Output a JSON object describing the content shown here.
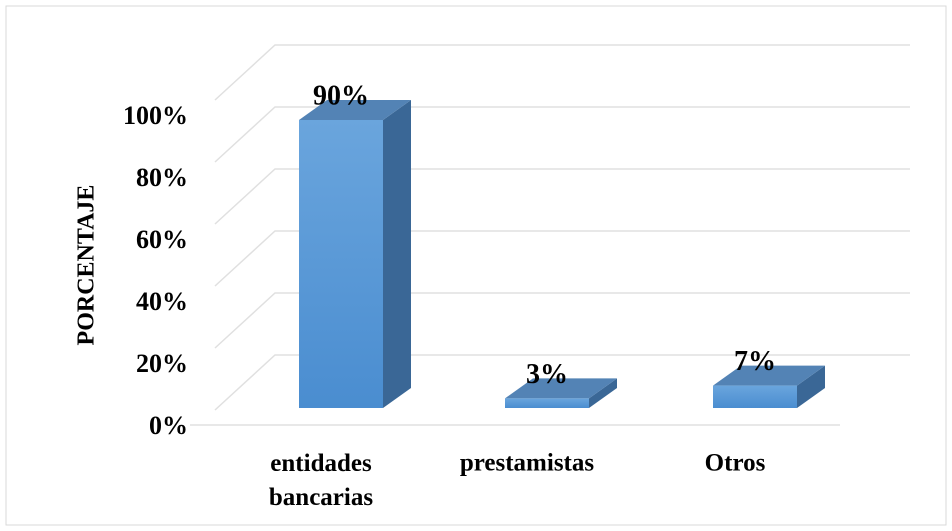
{
  "chart_data": {
    "type": "bar3d",
    "y_label": "PORCENTAJE",
    "categories": [
      "entidades bancarias",
      "prestamistas",
      "Otros"
    ],
    "values": [
      90,
      3,
      7
    ],
    "value_labels": [
      "90%",
      "3%",
      "7%"
    ],
    "color": "#5b9bd5",
    "ylim": [
      0,
      100
    ],
    "yticks": [
      {
        "value": 0,
        "label": "0%"
      },
      {
        "value": 20,
        "label": "20%"
      },
      {
        "value": 40,
        "label": "40%"
      },
      {
        "value": 60,
        "label": "60%"
      },
      {
        "value": 80,
        "label": "80%"
      },
      {
        "value": 100,
        "label": "100%"
      }
    ],
    "grid": true
  }
}
